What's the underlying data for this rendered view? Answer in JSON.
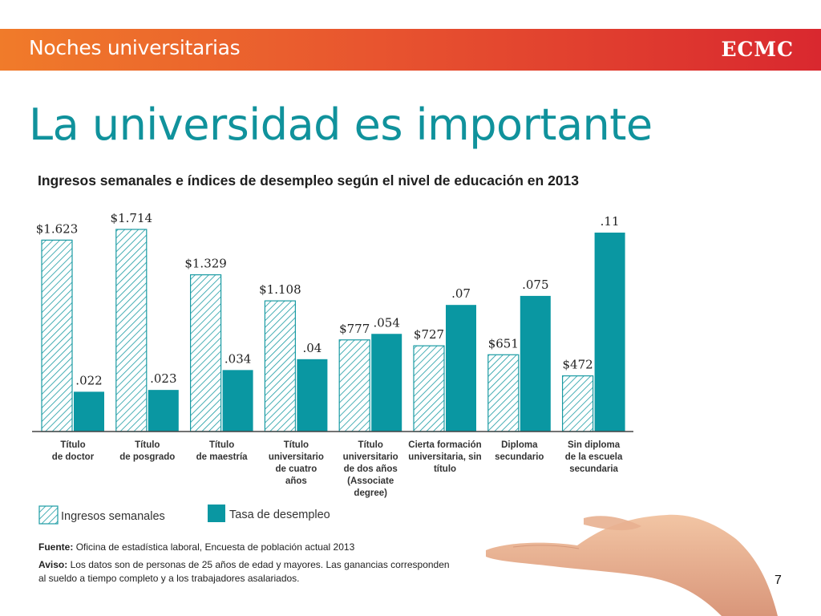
{
  "header": {
    "title": "Noches universitarias",
    "logo": "ECMC"
  },
  "slide": {
    "title": "La universidad es importante",
    "page_number": "7"
  },
  "chart_data": {
    "type": "bar",
    "title": "Ingresos semanales e índices de desempleo según el nivel de educación en 2013",
    "categories": [
      [
        "Título",
        "de doctor"
      ],
      [
        "Título",
        "de posgrado"
      ],
      [
        "Título",
        "de maestría"
      ],
      [
        "Título",
        "universitario",
        "de cuatro",
        "años"
      ],
      [
        "Título",
        "universitario",
        "de dos años",
        "(Associate",
        "degree)"
      ],
      [
        "Cierta formación",
        "universitaria, sin",
        "título"
      ],
      [
        "Diploma",
        "secundario"
      ],
      [
        "Sin diploma",
        "de la escuela",
        "secundaria"
      ]
    ],
    "series": [
      {
        "name": "Ingresos semanales",
        "pattern": "hatched",
        "values": [
          1623,
          1714,
          1329,
          1108,
          777,
          727,
          651,
          472
        ],
        "labels": [
          "$1.623",
          "$1.714",
          "$1.329",
          "$1.108",
          "$777",
          "$727",
          "$651",
          "$472"
        ]
      },
      {
        "name": "Tasa de desempleo",
        "pattern": "solid",
        "values": [
          0.022,
          0.023,
          0.034,
          0.04,
          0.054,
          0.07,
          0.075,
          0.11
        ],
        "labels": [
          ".022",
          ".023",
          ".034",
          ".04",
          ".054",
          ".07",
          ".075",
          ".11"
        ]
      }
    ],
    "colors": {
      "teal": "#0a97a2",
      "hatch": "#1a9ba3",
      "axis": "#444444"
    },
    "legend_position": "bottom-left",
    "grid": false
  },
  "footnotes": {
    "source_label": "Fuente:",
    "source_text": "Oficina de estadística laboral, Encuesta de población actual 2013",
    "notice_label": "Aviso:",
    "notice_line1": "Los datos son de personas de 25 años de edad y mayores. Las ganancias corresponden",
    "notice_line2": "al sueldo a tiempo completo y a los trabajadores asalariados."
  }
}
